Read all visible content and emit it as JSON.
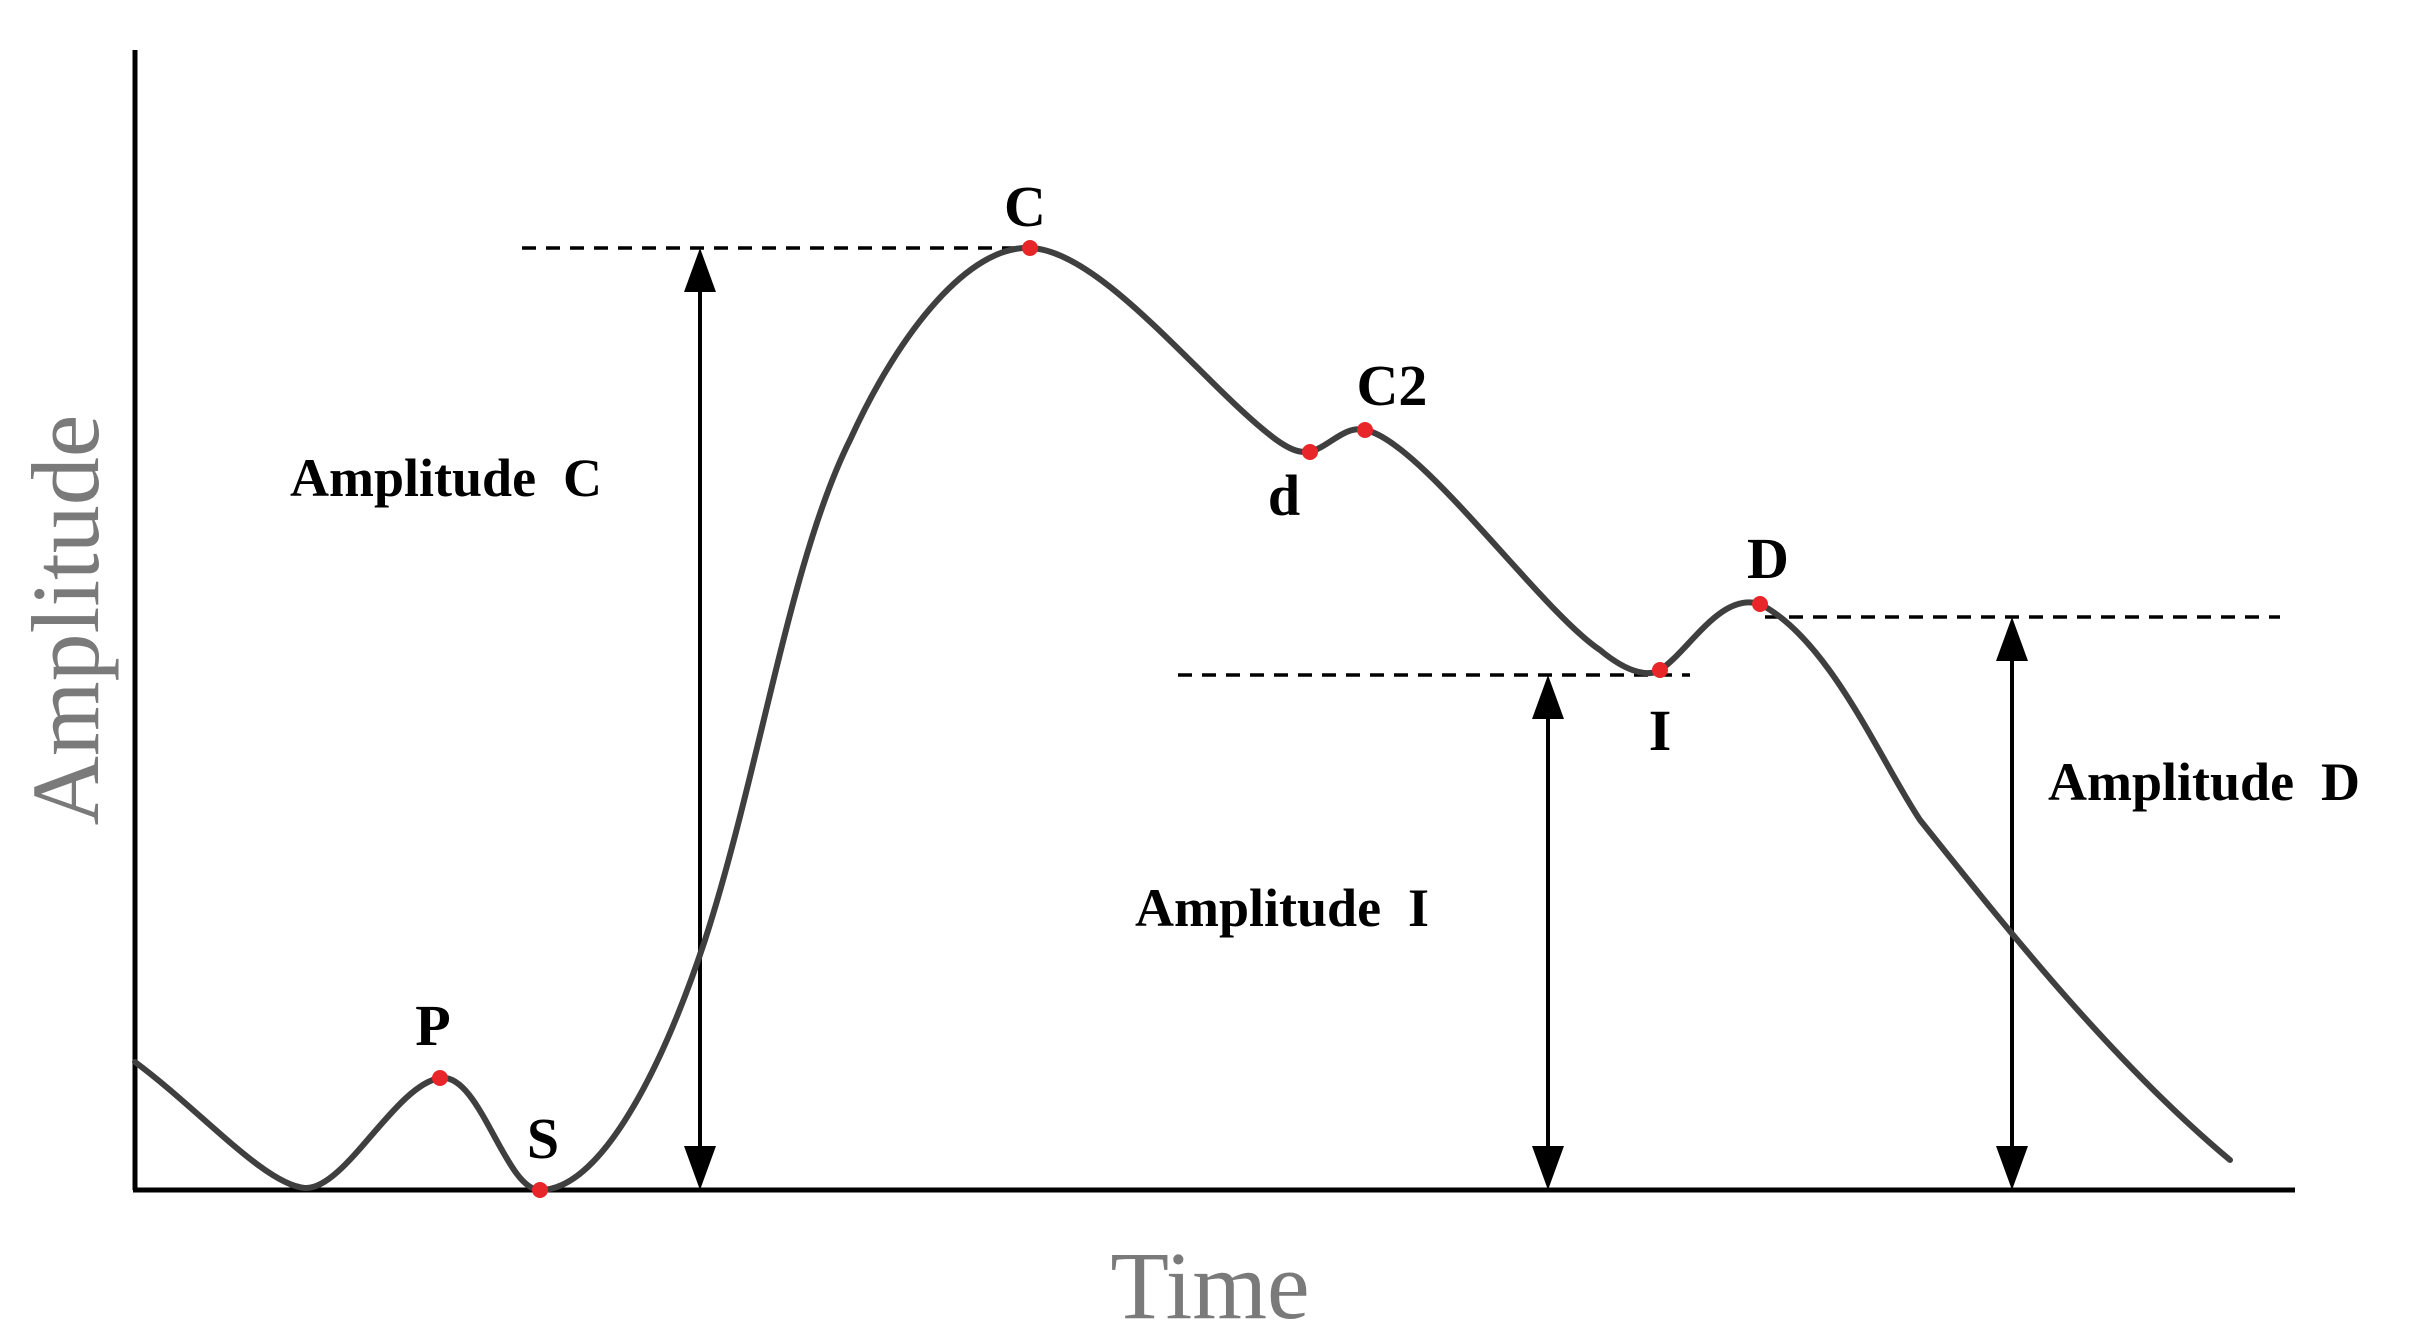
{
  "axes": {
    "x_title": "Time",
    "y_title": "Amplitude"
  },
  "points": {
    "P": "P",
    "S": "S",
    "C": "C",
    "d": "d",
    "C2": "C2",
    "I": "I",
    "D": "D"
  },
  "amplitudes": {
    "C": "Amplitude  C",
    "I": "Amplitude  I",
    "D": "Amplitude  D"
  },
  "colors": {
    "curve": "#3f3f3f",
    "marker": "#e8262a",
    "axis_title": "#7a7a7a"
  }
}
